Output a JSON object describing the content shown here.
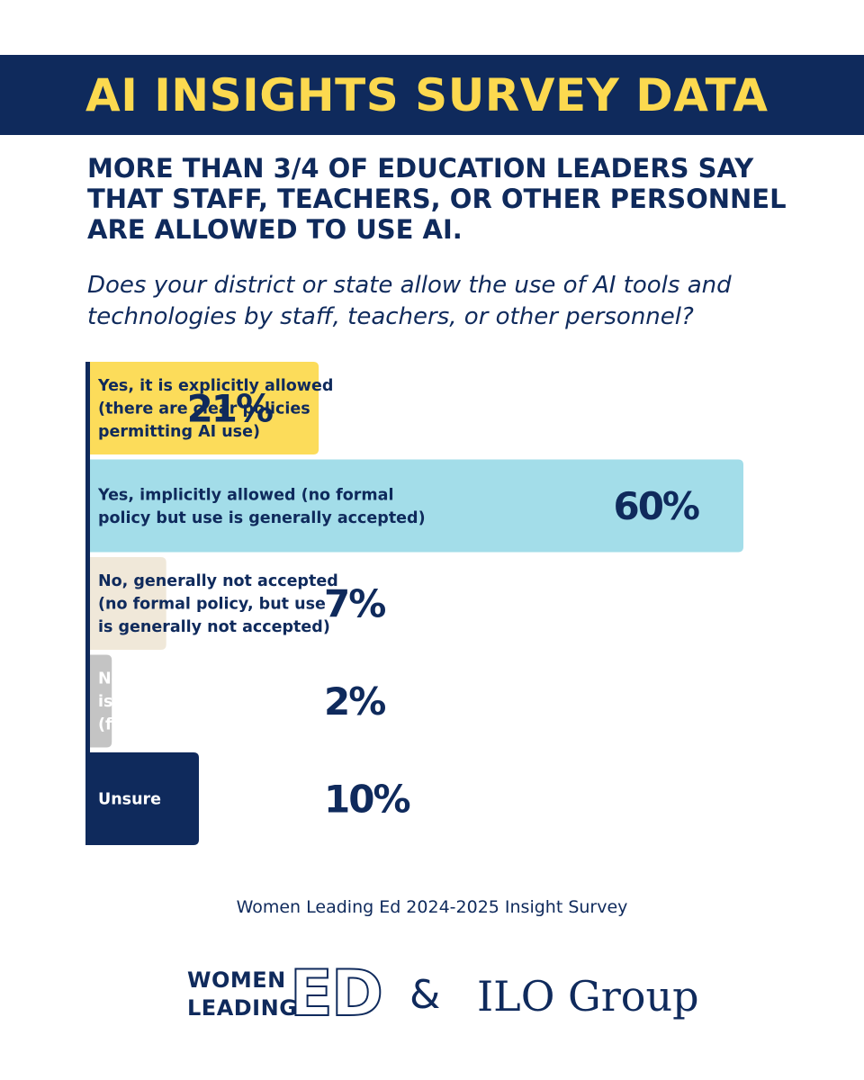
{
  "header": {
    "title": "AI INSIGHTS SURVEY DATA",
    "headline": "MORE THAN 3/4 OF EDUCATION LEADERS SAY THAT STAFF, TEACHERS, OR OTHER PERSONNEL ARE ALLOWED TO USE AI.",
    "question": "Does your district or state allow the use of AI tools and technologies by staff, teachers, or other personnel?"
  },
  "chart_data": {
    "type": "bar",
    "orientation": "horizontal",
    "categories": [
      [
        "Yes, it is explicitly allowed",
        "(there are clear policies",
        "permitting AI use)"
      ],
      [
        "Yes, implicitly allowed (no formal",
        "policy but use is generally accepted)"
      ],
      [
        "No, generally not accepted",
        "(no formal policy, but use",
        "is generally not accepted)"
      ],
      [
        "No, use of AI tools",
        "is not permitted",
        "(formal policy prohibits)"
      ],
      [
        "Unsure"
      ]
    ],
    "values": [
      21,
      60,
      7,
      2,
      10
    ],
    "value_labels": [
      "21%",
      "60%",
      "7%",
      "2%",
      "10%"
    ],
    "colors": [
      "#fcdc5a",
      "#a3dde9",
      "#f0e8d9",
      "#c4c4c4",
      "#0f2a5c"
    ],
    "label_colors": [
      "#0f2a5c",
      "#0f2a5c",
      "#0f2a5c",
      "#ffffff",
      "#ffffff"
    ],
    "axis_color": "#0f2a5c",
    "grid": false
  },
  "footer": {
    "source": "Women Leading Ed 2024-2025 Insight Survey",
    "logo_women": "WOMEN",
    "logo_leading": "LEADING",
    "logo_ed": "ED",
    "ampersand": "&",
    "ilo": "ILO Group"
  }
}
